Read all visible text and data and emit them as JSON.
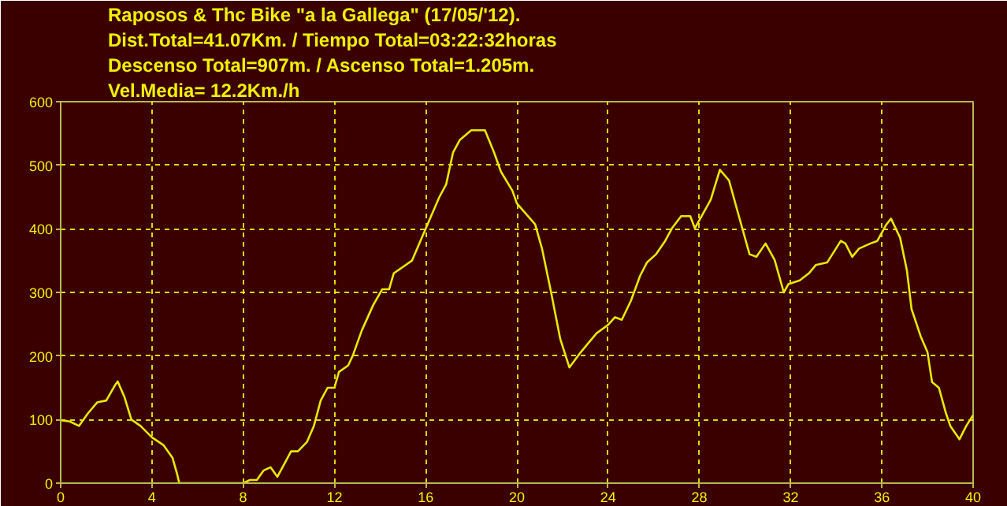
{
  "chart_data": {
    "type": "line",
    "title": "Raposos & Thc Bike \"a la Gallega\" (17/05/'12).",
    "annotations": [
      "Dist.Total=41.07Km. / Tiempo Total=03:22:32horas",
      "Descenso Total=907m. / Ascenso Total=1.205m.",
      "Vel.Media= 12.2Km./h"
    ],
    "x": [
      0,
      0.4,
      0.8,
      1.2,
      1.6,
      2.0,
      2.4,
      2.5,
      2.8,
      3.1,
      3.5,
      4.0,
      4.5,
      4.9,
      5.1,
      5.2,
      6.5,
      8.0,
      8.3,
      8.6,
      8.9,
      9.2,
      9.5,
      9.8,
      10.1,
      10.4,
      10.8,
      11.1,
      11.4,
      11.7,
      12.0,
      12.2,
      12.6,
      12.8,
      13.2,
      13.7,
      14.1,
      14.4,
      14.6,
      15.0,
      15.4,
      16.0,
      16.6,
      16.9,
      17.2,
      17.5,
      18.0,
      18.3,
      18.6,
      19.0,
      19.3,
      19.8,
      20.0,
      20.8,
      21.1,
      21.5,
      21.9,
      22.3,
      22.8,
      23.1,
      23.5,
      24.0,
      24.3,
      24.6,
      25.0,
      25.4,
      25.7,
      26.1,
      26.5,
      26.8,
      27.2,
      27.6,
      27.8,
      28.1,
      28.5,
      28.9,
      29.3,
      29.7,
      30.2,
      30.5,
      30.9,
      31.3,
      31.7,
      31.9,
      32.4,
      32.8,
      33.1,
      33.6,
      33.9,
      34.2,
      34.4,
      34.7,
      35.0,
      35.5,
      35.8,
      36.2,
      36.4,
      36.8,
      37.1,
      37.3,
      37.7,
      38.0,
      38.2,
      38.5,
      38.8,
      39.0,
      39.4,
      39.7,
      40.0
    ],
    "values": [
      99,
      97,
      90,
      110,
      127,
      130,
      155,
      160,
      135,
      100,
      90,
      72,
      60,
      40,
      15,
      0,
      0,
      0,
      5,
      5,
      20,
      25,
      10,
      30,
      50,
      50,
      65,
      90,
      130,
      150,
      150,
      175,
      185,
      200,
      240,
      280,
      305,
      305,
      330,
      340,
      350,
      400,
      450,
      470,
      520,
      540,
      555,
      555,
      555,
      520,
      490,
      460,
      440,
      407,
      369,
      300,
      227,
      182,
      206,
      219,
      236,
      249,
      261,
      257,
      287,
      326,
      347,
      360,
      381,
      401,
      420,
      420,
      401,
      420,
      446,
      493,
      476,
      424,
      360,
      356,
      377,
      351,
      300,
      313,
      319,
      330,
      343,
      347,
      364,
      381,
      377,
      356,
      369,
      377,
      381,
      407,
      416,
      386,
      334,
      274,
      231,
      206,
      159,
      150,
      111,
      90,
      69,
      90,
      107
    ],
    "color": "#e8e800",
    "xlim": [
      0,
      40
    ],
    "ylim": [
      0,
      600
    ],
    "xticks": [
      0,
      4,
      8,
      12,
      16,
      20,
      24,
      28,
      32,
      36,
      40
    ],
    "yticks": [
      0,
      100,
      200,
      300,
      400,
      500,
      600
    ],
    "grid": true
  }
}
